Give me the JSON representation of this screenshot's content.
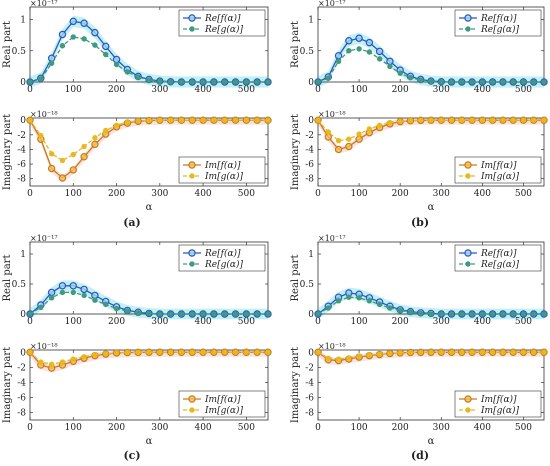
{
  "figure": {
    "panels": [
      {
        "label": "(a)"
      },
      {
        "label": "(b)"
      },
      {
        "label": "(c)"
      },
      {
        "label": "(d)"
      }
    ]
  },
  "colors": {
    "re_f": "#2b55c8",
    "re_g": "#3f9a80",
    "im_f": "#c77a1e",
    "im_g": "#e8b820",
    "band_re": "#8fe6e6",
    "band_im": "#f6c7c7"
  },
  "chart_data": [
    {
      "type": "line",
      "panel": "(a)",
      "part": "real",
      "ylabel": "Real part",
      "xlabel": "",
      "exponent": "×10⁻¹⁷",
      "xlim": [
        0,
        550
      ],
      "ylim": [
        0,
        1.2
      ],
      "xticks": [
        0,
        100,
        200,
        300,
        400,
        500
      ],
      "yticks": [
        0,
        0.5,
        1
      ],
      "legend": "top-right",
      "x": [
        0,
        25,
        50,
        75,
        100,
        125,
        150,
        175,
        200,
        225,
        250,
        275,
        300,
        325,
        350,
        375,
        400,
        425,
        450,
        475,
        500,
        525,
        550
      ],
      "series": [
        {
          "name": "Re[f(α)]",
          "values": [
            0,
            0.06,
            0.38,
            0.76,
            0.97,
            0.94,
            0.79,
            0.57,
            0.36,
            0.2,
            0.09,
            0.04,
            0.015,
            0.005,
            0,
            0,
            0,
            0,
            0,
            0,
            0,
            0,
            0
          ]
        },
        {
          "name": "Re[g(α)]",
          "values": [
            0,
            0.05,
            0.3,
            0.58,
            0.72,
            0.69,
            0.59,
            0.44,
            0.28,
            0.16,
            0.08,
            0.03,
            0.01,
            0,
            0,
            0,
            0,
            0,
            0,
            0,
            0,
            0,
            0
          ]
        }
      ]
    },
    {
      "type": "line",
      "panel": "(a)",
      "part": "imaginary",
      "ylabel": "Imaginary part",
      "xlabel": "α",
      "exponent": "×10⁻¹⁸",
      "xlim": [
        0,
        550
      ],
      "ylim": [
        -9,
        0.3
      ],
      "xticks": [
        0,
        100,
        200,
        300,
        400,
        500
      ],
      "yticks": [
        0,
        -2,
        -4,
        -6,
        -8
      ],
      "legend": "bottom-right",
      "x": [
        0,
        25,
        50,
        75,
        100,
        125,
        150,
        175,
        200,
        225,
        250,
        275,
        300,
        325,
        350,
        375,
        400,
        425,
        450,
        475,
        500,
        525,
        550
      ],
      "series": [
        {
          "name": "Im[f(α)]",
          "values": [
            0,
            -2.6,
            -6.6,
            -7.9,
            -6.8,
            -5.0,
            -3.3,
            -1.9,
            -0.9,
            -0.4,
            -0.15,
            -0.05,
            0,
            0,
            0,
            0,
            0,
            0,
            0,
            0,
            0,
            0,
            0
          ]
        },
        {
          "name": "Im[g(α)]",
          "values": [
            0,
            -2.1,
            -4.6,
            -5.5,
            -4.7,
            -3.6,
            -2.4,
            -1.4,
            -0.7,
            -0.3,
            -0.1,
            -0.03,
            0,
            0,
            0,
            0,
            0,
            0,
            0,
            0,
            0,
            0,
            0
          ]
        }
      ]
    },
    {
      "type": "line",
      "panel": "(b)",
      "part": "real",
      "ylabel": "Real part",
      "xlabel": "",
      "exponent": "×10⁻¹⁷",
      "xlim": [
        0,
        550
      ],
      "ylim": [
        0,
        1.2
      ],
      "xticks": [
        0,
        100,
        200,
        300,
        400,
        500
      ],
      "yticks": [
        0,
        0.5,
        1
      ],
      "legend": "top-right",
      "x": [
        0,
        25,
        50,
        75,
        100,
        125,
        150,
        175,
        200,
        225,
        250,
        275,
        300,
        325,
        350,
        375,
        400,
        425,
        450,
        475,
        500,
        525,
        550
      ],
      "series": [
        {
          "name": "Re[f(α)]",
          "values": [
            0,
            0.08,
            0.42,
            0.66,
            0.7,
            0.63,
            0.49,
            0.33,
            0.19,
            0.09,
            0.04,
            0.015,
            0.005,
            0,
            0,
            0,
            0,
            0,
            0,
            0,
            0,
            0,
            0
          ]
        },
        {
          "name": "Re[g(α)]",
          "values": [
            0,
            0.06,
            0.33,
            0.5,
            0.53,
            0.48,
            0.37,
            0.25,
            0.14,
            0.07,
            0.03,
            0.01,
            0,
            0,
            0,
            0,
            0,
            0,
            0,
            0,
            0,
            0,
            0
          ]
        }
      ]
    },
    {
      "type": "line",
      "panel": "(b)",
      "part": "imaginary",
      "ylabel": "Imaginary part",
      "xlabel": "α",
      "exponent": "×10⁻¹⁸",
      "xlim": [
        0,
        550
      ],
      "ylim": [
        -9,
        0.3
      ],
      "xticks": [
        0,
        100,
        200,
        300,
        400,
        500
      ],
      "yticks": [
        0,
        -2,
        -4,
        -6,
        -8
      ],
      "legend": "bottom-right",
      "x": [
        0,
        25,
        50,
        75,
        100,
        125,
        150,
        175,
        200,
        225,
        250,
        275,
        300,
        325,
        350,
        375,
        400,
        425,
        450,
        475,
        500,
        525,
        550
      ],
      "series": [
        {
          "name": "Im[f(α)]",
          "values": [
            0,
            -2.3,
            -4.0,
            -3.6,
            -2.6,
            -1.7,
            -1.0,
            -0.5,
            -0.2,
            -0.08,
            -0.02,
            0,
            0,
            0,
            0,
            0,
            0,
            0,
            0,
            0,
            0,
            0,
            0
          ]
        },
        {
          "name": "Im[g(α)]",
          "values": [
            0,
            -1.6,
            -2.8,
            -2.6,
            -1.9,
            -1.2,
            -0.7,
            -0.35,
            -0.15,
            -0.05,
            -0.01,
            0,
            0,
            0,
            0,
            0,
            0,
            0,
            0,
            0,
            0,
            0,
            0
          ]
        }
      ]
    },
    {
      "type": "line",
      "panel": "(c)",
      "part": "real",
      "ylabel": "Real part",
      "xlabel": "",
      "exponent": "×10⁻¹⁷",
      "xlim": [
        0,
        550
      ],
      "ylim": [
        0,
        1.2
      ],
      "xticks": [
        0,
        100,
        200,
        300,
        400,
        500
      ],
      "yticks": [
        0,
        0.5,
        1
      ],
      "legend": "top-right",
      "x": [
        0,
        25,
        50,
        75,
        100,
        125,
        150,
        175,
        200,
        225,
        250,
        275,
        300,
        325,
        350,
        375,
        400,
        425,
        450,
        475,
        500,
        525,
        550
      ],
      "series": [
        {
          "name": "Re[f(α)]",
          "values": [
            0,
            0.15,
            0.36,
            0.47,
            0.47,
            0.41,
            0.31,
            0.21,
            0.12,
            0.06,
            0.03,
            0.01,
            0,
            0,
            0,
            0,
            0,
            0,
            0,
            0,
            0,
            0,
            0
          ]
        },
        {
          "name": "Re[g(α)]",
          "values": [
            0,
            0.11,
            0.27,
            0.36,
            0.36,
            0.31,
            0.23,
            0.16,
            0.09,
            0.05,
            0.02,
            0.01,
            0,
            0,
            0,
            0,
            0,
            0,
            0,
            0,
            0,
            0,
            0
          ]
        }
      ]
    },
    {
      "type": "line",
      "panel": "(c)",
      "part": "imaginary",
      "ylabel": "Imaginary part",
      "xlabel": "α",
      "exponent": "×10⁻¹⁸",
      "xlim": [
        0,
        550
      ],
      "ylim": [
        -9,
        0.3
      ],
      "xticks": [
        0,
        100,
        200,
        300,
        400,
        500
      ],
      "yticks": [
        0,
        -2,
        -4,
        -6,
        -8
      ],
      "legend": "bottom-right",
      "x": [
        0,
        25,
        50,
        75,
        100,
        125,
        150,
        175,
        200,
        225,
        250,
        275,
        300,
        325,
        350,
        375,
        400,
        425,
        450,
        475,
        500,
        525,
        550
      ],
      "series": [
        {
          "name": "Im[f(α)]",
          "values": [
            0,
            -1.7,
            -2.1,
            -1.7,
            -1.2,
            -0.8,
            -0.45,
            -0.25,
            -0.1,
            -0.04,
            -0.01,
            0,
            0,
            0,
            0,
            0,
            0,
            0,
            0,
            0,
            0,
            0,
            0
          ]
        },
        {
          "name": "Im[g(α)]",
          "values": [
            0,
            -1.3,
            -1.6,
            -1.3,
            -0.9,
            -0.6,
            -0.35,
            -0.18,
            -0.08,
            -0.03,
            -0.01,
            0,
            0,
            0,
            0,
            0,
            0,
            0,
            0,
            0,
            0,
            0,
            0
          ]
        }
      ]
    },
    {
      "type": "line",
      "panel": "(d)",
      "part": "real",
      "ylabel": "Real part",
      "xlabel": "",
      "exponent": "×10⁻¹⁷",
      "xlim": [
        0,
        550
      ],
      "ylim": [
        0,
        1.2
      ],
      "xticks": [
        0,
        100,
        200,
        300,
        400,
        500
      ],
      "yticks": [
        0,
        0.5,
        1
      ],
      "legend": "top-right",
      "x": [
        0,
        25,
        50,
        75,
        100,
        125,
        150,
        175,
        200,
        225,
        250,
        275,
        300,
        325,
        350,
        375,
        400,
        425,
        450,
        475,
        500,
        525,
        550
      ],
      "series": [
        {
          "name": "Re[f(α)]",
          "values": [
            0,
            0.13,
            0.28,
            0.35,
            0.33,
            0.27,
            0.2,
            0.13,
            0.07,
            0.04,
            0.02,
            0.01,
            0,
            0,
            0,
            0,
            0,
            0,
            0,
            0,
            0,
            0,
            0
          ]
        },
        {
          "name": "Re[g(α)]",
          "values": [
            0,
            0.1,
            0.22,
            0.28,
            0.27,
            0.22,
            0.16,
            0.1,
            0.06,
            0.03,
            0.01,
            0,
            0,
            0,
            0,
            0,
            0,
            0,
            0,
            0,
            0,
            0,
            0
          ]
        }
      ]
    },
    {
      "type": "line",
      "panel": "(d)",
      "part": "imaginary",
      "ylabel": "Imaginary part",
      "xlabel": "α",
      "exponent": "×10⁻¹⁸",
      "xlim": [
        0,
        550
      ],
      "ylim": [
        -9,
        0.3
      ],
      "xticks": [
        0,
        100,
        200,
        300,
        400,
        500
      ],
      "yticks": [
        0,
        -2,
        -4,
        -6,
        -8
      ],
      "legend": "bottom-right",
      "x": [
        0,
        25,
        50,
        75,
        100,
        125,
        150,
        175,
        200,
        225,
        250,
        275,
        300,
        325,
        350,
        375,
        400,
        425,
        450,
        475,
        500,
        525,
        550
      ],
      "series": [
        {
          "name": "Im[f(α)]",
          "values": [
            0,
            -1.0,
            -1.1,
            -0.9,
            -0.65,
            -0.45,
            -0.3,
            -0.17,
            -0.08,
            -0.03,
            -0.01,
            0,
            0,
            0,
            0,
            0,
            0,
            0,
            0,
            0,
            0,
            0,
            0
          ]
        },
        {
          "name": "Im[g(α)]",
          "values": [
            0,
            -0.8,
            -0.9,
            -0.75,
            -0.55,
            -0.38,
            -0.25,
            -0.14,
            -0.07,
            -0.03,
            -0.01,
            0,
            0,
            0,
            0,
            0,
            0,
            0,
            0,
            0,
            0,
            0,
            0
          ]
        }
      ]
    }
  ]
}
